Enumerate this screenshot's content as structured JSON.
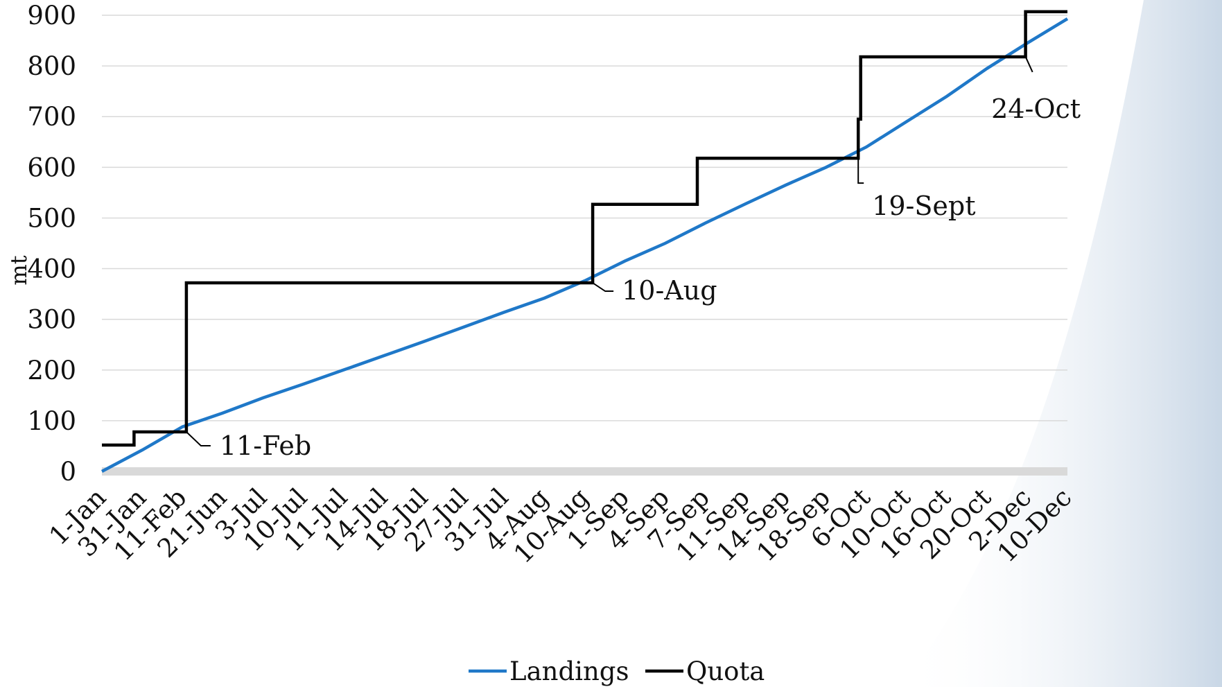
{
  "chart_data": {
    "type": "line",
    "title": "",
    "xlabel": "",
    "ylabel": "mt",
    "ylim": [
      0,
      900
    ],
    "yticks": [
      0,
      100,
      200,
      300,
      400,
      500,
      600,
      700,
      800,
      900
    ],
    "categories": [
      "1-Jan",
      "31-Jan",
      "11-Feb",
      "21-Jun",
      "3-Jul",
      "10-Jul",
      "11-Jul",
      "14-Jul",
      "18-Jul",
      "27-Jul",
      "31-Jul",
      "4-Aug",
      "10-Aug",
      "1-Sep",
      "4-Sep",
      "7-Sep",
      "11-Sep",
      "14-Sep",
      "18-Sep",
      "6-Oct",
      "10-Oct",
      "16-Oct",
      "20-Oct",
      "2-Dec",
      "10-Dec"
    ],
    "grid": true,
    "legend_position": "bottom",
    "series": [
      {
        "name": "Landings",
        "color": "#1f78c8",
        "x": [
          0,
          1,
          2,
          3,
          4,
          5,
          6,
          7,
          8,
          9,
          10,
          11,
          12,
          13,
          14,
          15,
          16,
          17,
          18,
          19,
          20,
          21,
          22,
          23,
          24
        ],
        "y": [
          0,
          42,
          88,
          115,
          145,
          172,
          200,
          228,
          256,
          285,
          314,
          342,
          376,
          415,
          450,
          490,
          528,
          565,
          600,
          640,
          690,
          740,
          795,
          845,
          893
        ]
      },
      {
        "name": "Quota",
        "color": "#000000",
        "step": true,
        "x": [
          0,
          0.8,
          0.8,
          2.1,
          2.1,
          12.2,
          12.2,
          14.8,
          14.8,
          18.8,
          18.8,
          18.86,
          18.86,
          22.96,
          22.96,
          24
        ],
        "y": [
          52,
          52,
          78,
          78,
          372,
          372,
          527,
          527,
          618,
          618,
          695,
          695,
          818,
          818,
          907,
          907
        ]
      }
    ],
    "annotations": [
      {
        "text": "11-Feb",
        "x": 2.1,
        "y": 78
      },
      {
        "text": "10-Aug",
        "x": 12.2,
        "y": 372
      },
      {
        "text": "19-Sept",
        "x": 18.8,
        "y": 618
      },
      {
        "text": "24-Oct",
        "x": 22.96,
        "y": 818
      }
    ]
  }
}
